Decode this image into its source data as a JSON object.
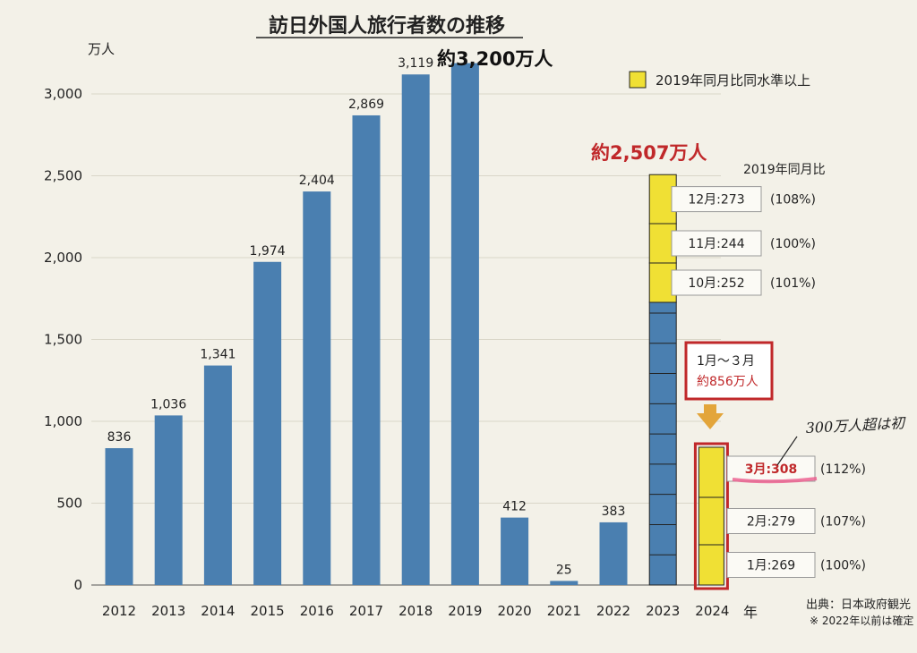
{
  "chart_data": {
    "type": "bar",
    "title": "訪日外国人旅行者数の推移",
    "unit_label": "万人",
    "xunit": "年",
    "ylim": [
      0,
      3000
    ],
    "yticks": [
      0,
      500,
      1000,
      1500,
      2000,
      2500,
      3000
    ],
    "ytick_labels": [
      "0",
      "500",
      "1,000",
      "1,500",
      "2,000",
      "2,500",
      "3,000"
    ],
    "grid": true,
    "categories": [
      "2012",
      "2013",
      "2014",
      "2015",
      "2016",
      "2017",
      "2018",
      "2019",
      "2020",
      "2021",
      "2022",
      "2023",
      "2024"
    ],
    "values": [
      836,
      1036,
      1341,
      1974,
      2404,
      2869,
      3119,
      3188,
      412,
      25,
      383,
      2507,
      856
    ],
    "value_labels": [
      "836",
      "1,036",
      "1,341",
      "1,974",
      "2,404",
      "2,869",
      "3,119",
      "",
      "412",
      "25",
      "383",
      "",
      ""
    ],
    "bar_color": "#4a7fb0",
    "highlight_color": "#f0e034",
    "annotation_color": "#c0282a",
    "legend": {
      "label": "2019年同月比同水準以上",
      "position": "top-right"
    },
    "callout_2019": "約3,200万人",
    "callout_2023": "約2,507万人",
    "comparison_header": "2019年同月比",
    "stack_2023": {
      "months": [
        {
          "label": "12月:273",
          "pct": "(108%)",
          "value": 273
        },
        {
          "label": "11月:244",
          "pct": "(100%)",
          "value": 244
        },
        {
          "label": "10月:252",
          "pct": "(101%)",
          "value": 252
        }
      ],
      "other_segments": 9
    },
    "stack_2024": {
      "months": [
        {
          "label": "3月:308",
          "pct": "(112%)",
          "value": 308
        },
        {
          "label": "2月:279",
          "pct": "(107%)",
          "value": 279
        },
        {
          "label": "1月:269",
          "pct": "(100%)",
          "value": 269
        }
      ]
    },
    "q1_box": {
      "line1": "1月～３月",
      "line2": "約856万人"
    },
    "handwritten_note": "300万人超は初",
    "source": "出典：日本政府観光",
    "footnote": "※ 2022年以前は確定"
  }
}
